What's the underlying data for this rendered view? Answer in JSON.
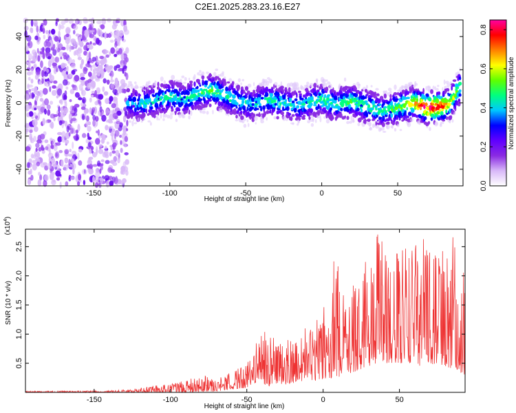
{
  "title": "C2E1.2025.283.23.16.E27",
  "chart_data": [
    {
      "type": "heatmap",
      "title": "C2E1.2025.283.23.16.E27",
      "xlabel": "Height of straight line (km)",
      "ylabel": "Frequency (Hz)",
      "xlim": [
        -195,
        93
      ],
      "ylim": [
        -50,
        50
      ],
      "xticks": [
        -150,
        -100,
        -50,
        0,
        50
      ],
      "yticks": [
        -40,
        -20,
        0,
        20,
        40
      ],
      "grid": false,
      "colorbar": {
        "label": "Normalized spectral amplitude",
        "range": [
          0.0,
          0.85
        ],
        "ticks": [
          0.0,
          0.2,
          0.4,
          0.6,
          0.8
        ],
        "colormap": [
          "#ffffff",
          "#d8b8f8",
          "#8a2be2",
          "#6000ff",
          "#0000ff",
          "#00c8ff",
          "#00ff80",
          "#60ff00",
          "#ffff00",
          "#ff8000",
          "#ff0000",
          "#ff00a0"
        ]
      },
      "noise_region_x": [
        -195,
        -128
      ],
      "ridge": {
        "x": [
          -128,
          -120,
          -110,
          -100,
          -90,
          -80,
          -72,
          -65,
          -55,
          -45,
          -35,
          -25,
          -15,
          -5,
          0,
          10,
          20,
          30,
          40,
          50,
          60,
          70,
          80,
          85,
          88,
          91
        ],
        "frequency": [
          0,
          -1,
          1,
          4,
          2,
          6,
          8,
          5,
          1,
          -1,
          2,
          0,
          -2,
          1,
          2,
          -1,
          1,
          -2,
          -5,
          -3,
          0,
          -3,
          -2,
          0,
          5,
          10
        ],
        "peak_amplitude": [
          0.35,
          0.4,
          0.42,
          0.45,
          0.42,
          0.48,
          0.5,
          0.45,
          0.42,
          0.4,
          0.45,
          0.42,
          0.4,
          0.45,
          0.48,
          0.45,
          0.5,
          0.48,
          0.45,
          0.5,
          0.65,
          0.85,
          0.75,
          0.6,
          0.55,
          0.5
        ]
      }
    },
    {
      "type": "line",
      "xlabel": "Height of straight line (km)",
      "ylabel": "SNR (10 * v/v)",
      "y_multiplier": "(x10^4)",
      "xlim": [
        -195,
        93
      ],
      "ylim": [
        0,
        2.8
      ],
      "xticks": [
        -150,
        -100,
        -50,
        0,
        50
      ],
      "yticks": [
        0.5,
        1.0,
        1.5,
        2.0,
        2.5
      ],
      "grid": false,
      "color": "#ee3333",
      "envelope": {
        "x": [
          -195,
          -140,
          -125,
          -110,
          -100,
          -90,
          -80,
          -70,
          -60,
          -50,
          -40,
          -30,
          -20,
          -10,
          0,
          8,
          15,
          25,
          35,
          45,
          55,
          65,
          75,
          85,
          93
        ],
        "upper": [
          0.02,
          0.03,
          0.05,
          0.12,
          0.15,
          0.2,
          0.3,
          0.22,
          0.35,
          0.5,
          1.1,
          0.9,
          1.0,
          1.2,
          1.4,
          2.4,
          1.5,
          2.2,
          2.75,
          2.5,
          2.6,
          2.7,
          2.3,
          2.7,
          2.1
        ],
        "lower": [
          0.0,
          0.0,
          0.0,
          0.0,
          0.0,
          0.0,
          0.0,
          0.02,
          0.05,
          0.08,
          0.1,
          0.12,
          0.15,
          0.2,
          0.2,
          0.25,
          0.3,
          0.4,
          0.5,
          0.5,
          0.5,
          0.45,
          0.5,
          0.4,
          0.3
        ]
      }
    }
  ]
}
